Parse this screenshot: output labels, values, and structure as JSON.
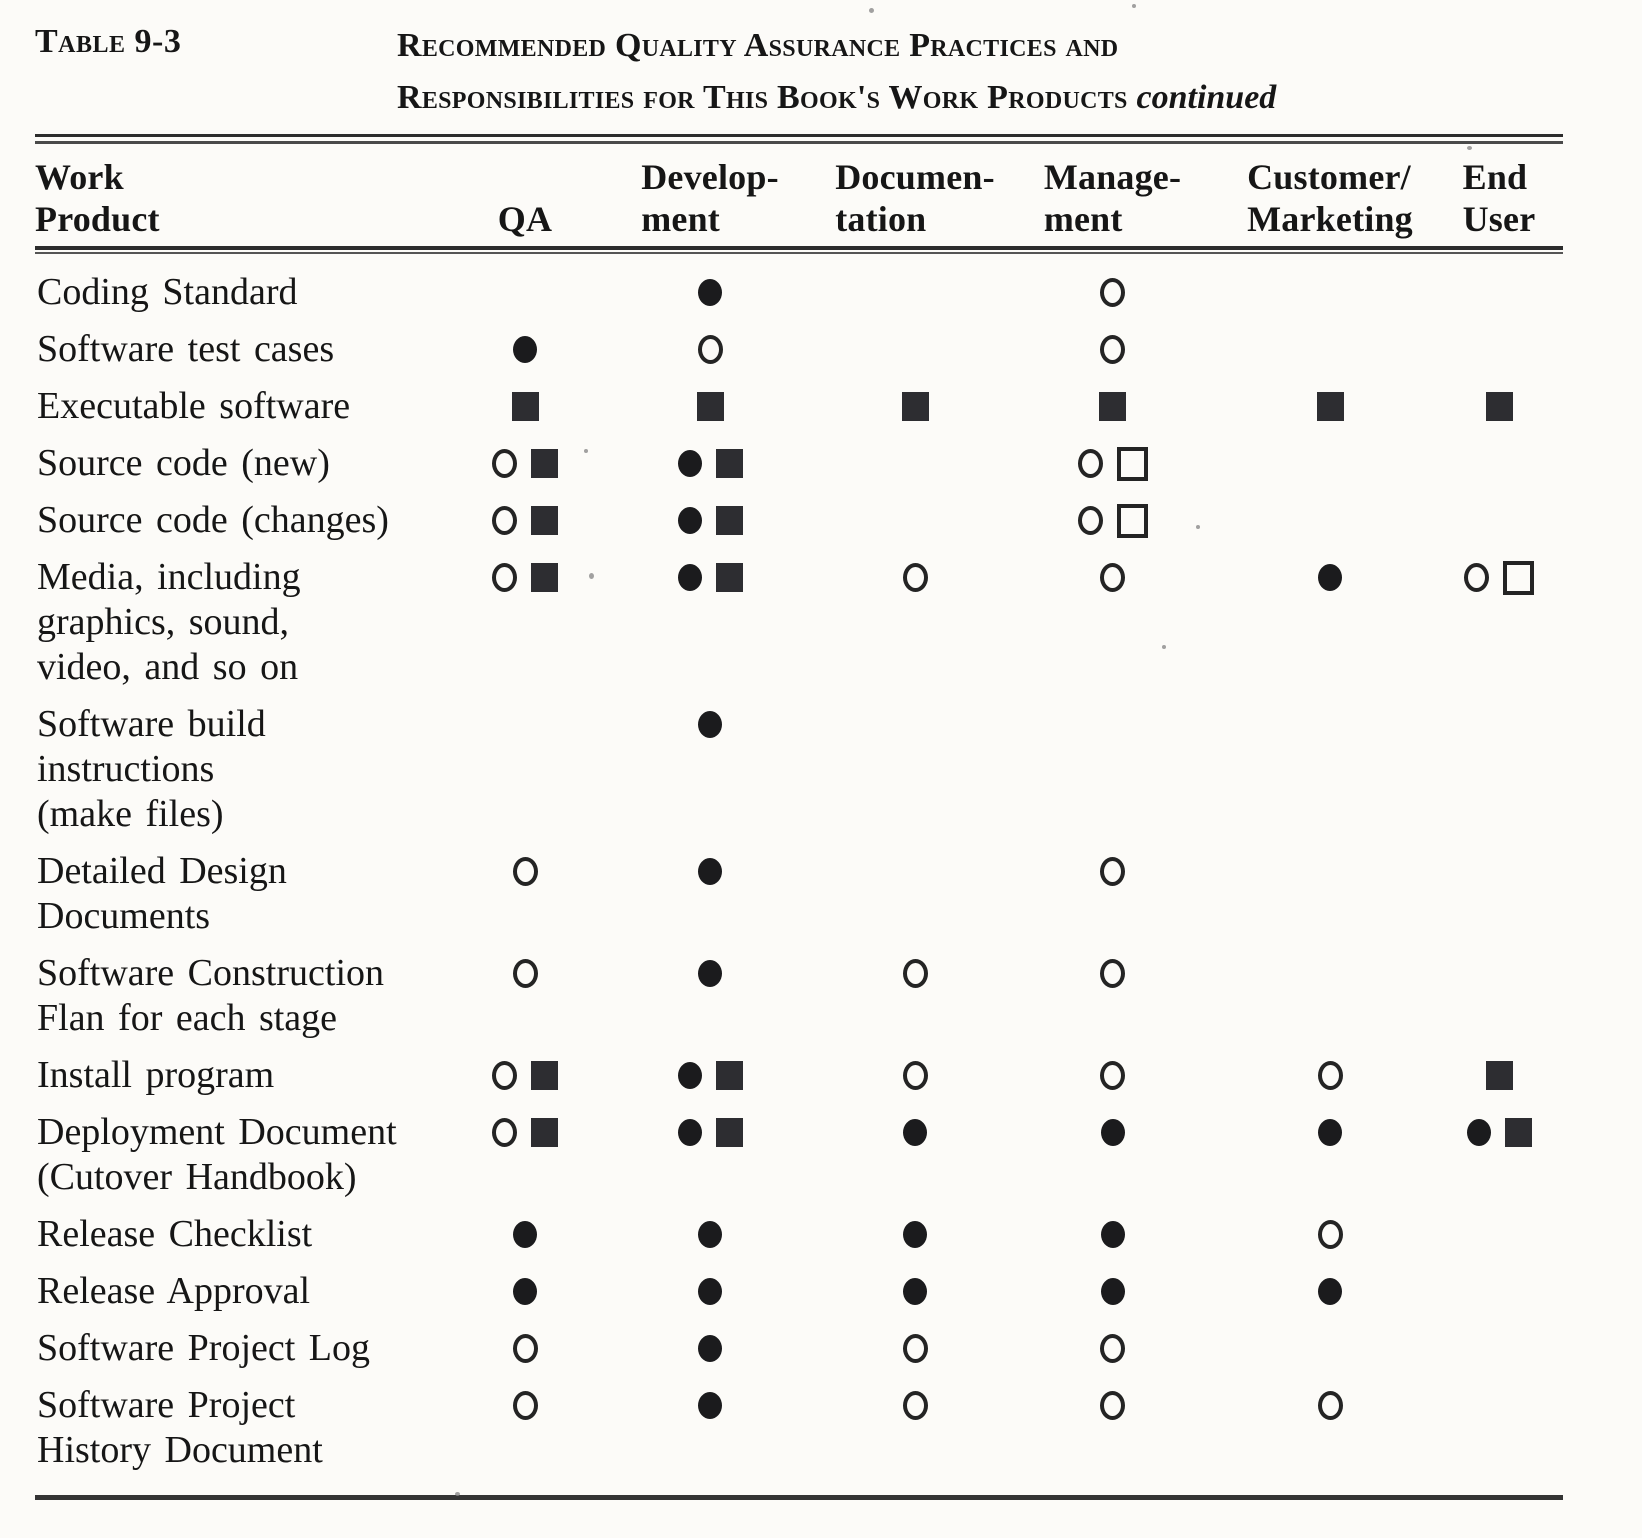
{
  "page": {
    "paper_color": "#fcfbf8",
    "ink_color": "#161616"
  },
  "caption": {
    "table_label": "Table 9-3",
    "title_line1": "Recommended Quality Assurance Practices and",
    "title_line2": "Responsibilities for This Book's Work Products",
    "continued_note": "continued"
  },
  "symbols": {
    "filled-circle": "●",
    "open-circle": "○",
    "filled-square": "■",
    "open-square": "□"
  },
  "table": {
    "columns": [
      {
        "id": "work-product",
        "lines": [
          "Work",
          "Product"
        ]
      },
      {
        "id": "qa",
        "lines": [
          "QA"
        ]
      },
      {
        "id": "development",
        "lines": [
          "Develop-",
          "ment"
        ]
      },
      {
        "id": "documentation",
        "lines": [
          "Documen-",
          "tation"
        ]
      },
      {
        "id": "management",
        "lines": [
          "Manage-",
          "ment"
        ]
      },
      {
        "id": "customer-marketing",
        "lines": [
          "Customer/",
          "Marketing"
        ]
      },
      {
        "id": "end-user",
        "lines": [
          "End",
          "User"
        ]
      }
    ],
    "rows": [
      {
        "label": [
          "Coding Standard"
        ],
        "cells": [
          [],
          [
            "filled-circle"
          ],
          [],
          [
            "open-circle"
          ],
          [],
          []
        ]
      },
      {
        "label": [
          "Software test cases"
        ],
        "cells": [
          [
            "filled-circle"
          ],
          [
            "open-circle"
          ],
          [],
          [
            "open-circle"
          ],
          [],
          []
        ]
      },
      {
        "label": [
          "Executable software"
        ],
        "cells": [
          [
            "filled-square"
          ],
          [
            "filled-square"
          ],
          [
            "filled-square"
          ],
          [
            "filled-square"
          ],
          [
            "filled-square"
          ],
          [
            "filled-square"
          ]
        ]
      },
      {
        "label": [
          "Source code (new)"
        ],
        "cells": [
          [
            "open-circle",
            "filled-square"
          ],
          [
            "filled-circle",
            "filled-square"
          ],
          [],
          [
            "open-circle",
            "open-square"
          ],
          [],
          []
        ]
      },
      {
        "label": [
          "Source code (changes)"
        ],
        "cells": [
          [
            "open-circle",
            "filled-square"
          ],
          [
            "filled-circle",
            "filled-square"
          ],
          [],
          [
            "open-circle",
            "open-square"
          ],
          [],
          []
        ]
      },
      {
        "label": [
          "Media, including",
          "graphics, sound,",
          "video, and so on"
        ],
        "cells": [
          [
            "open-circle",
            "filled-square"
          ],
          [
            "filled-circle",
            "filled-square"
          ],
          [
            "open-circle"
          ],
          [
            "open-circle"
          ],
          [
            "filled-circle"
          ],
          [
            "open-circle",
            "open-square"
          ]
        ]
      },
      {
        "label": [
          "Software build",
          "instructions",
          "(make files)"
        ],
        "cells": [
          [],
          [
            "filled-circle"
          ],
          [],
          [],
          [],
          []
        ]
      },
      {
        "label": [
          "Detailed Design",
          "Documents"
        ],
        "cells": [
          [
            "open-circle"
          ],
          [
            "filled-circle"
          ],
          [],
          [
            "open-circle"
          ],
          [],
          []
        ]
      },
      {
        "label": [
          "Software Construction",
          "Flan for each stage"
        ],
        "cells": [
          [
            "open-circle"
          ],
          [
            "filled-circle"
          ],
          [
            "open-circle"
          ],
          [
            "open-circle"
          ],
          [],
          []
        ]
      },
      {
        "label": [
          "Install program"
        ],
        "cells": [
          [
            "open-circle",
            "filled-square"
          ],
          [
            "filled-circle",
            "filled-square"
          ],
          [
            "open-circle"
          ],
          [
            "open-circle"
          ],
          [
            "open-circle"
          ],
          [
            "filled-square"
          ]
        ]
      },
      {
        "label": [
          "Deployment Document",
          "(Cutover Handbook)"
        ],
        "cells": [
          [
            "open-circle",
            "filled-square"
          ],
          [
            "filled-circle",
            "filled-square"
          ],
          [
            "filled-circle"
          ],
          [
            "filled-circle"
          ],
          [
            "filled-circle"
          ],
          [
            "filled-circle",
            "filled-square"
          ]
        ]
      },
      {
        "label": [
          "Release Checklist"
        ],
        "cells": [
          [
            "filled-circle"
          ],
          [
            "filled-circle"
          ],
          [
            "filled-circle"
          ],
          [
            "filled-circle"
          ],
          [
            "open-circle"
          ],
          []
        ]
      },
      {
        "label": [
          "Release Approval"
        ],
        "cells": [
          [
            "filled-circle"
          ],
          [
            "filled-circle"
          ],
          [
            "filled-circle"
          ],
          [
            "filled-circle"
          ],
          [
            "filled-circle"
          ],
          []
        ]
      },
      {
        "label": [
          "Software Project Log"
        ],
        "cells": [
          [
            "open-circle"
          ],
          [
            "filled-circle"
          ],
          [
            "open-circle"
          ],
          [
            "open-circle"
          ],
          [],
          []
        ]
      },
      {
        "label": [
          "Software Project",
          "History Document"
        ],
        "cells": [
          [
            "open-circle"
          ],
          [
            "filled-circle"
          ],
          [
            "open-circle"
          ],
          [
            "open-circle"
          ],
          [
            "open-circle"
          ],
          []
        ]
      }
    ]
  }
}
